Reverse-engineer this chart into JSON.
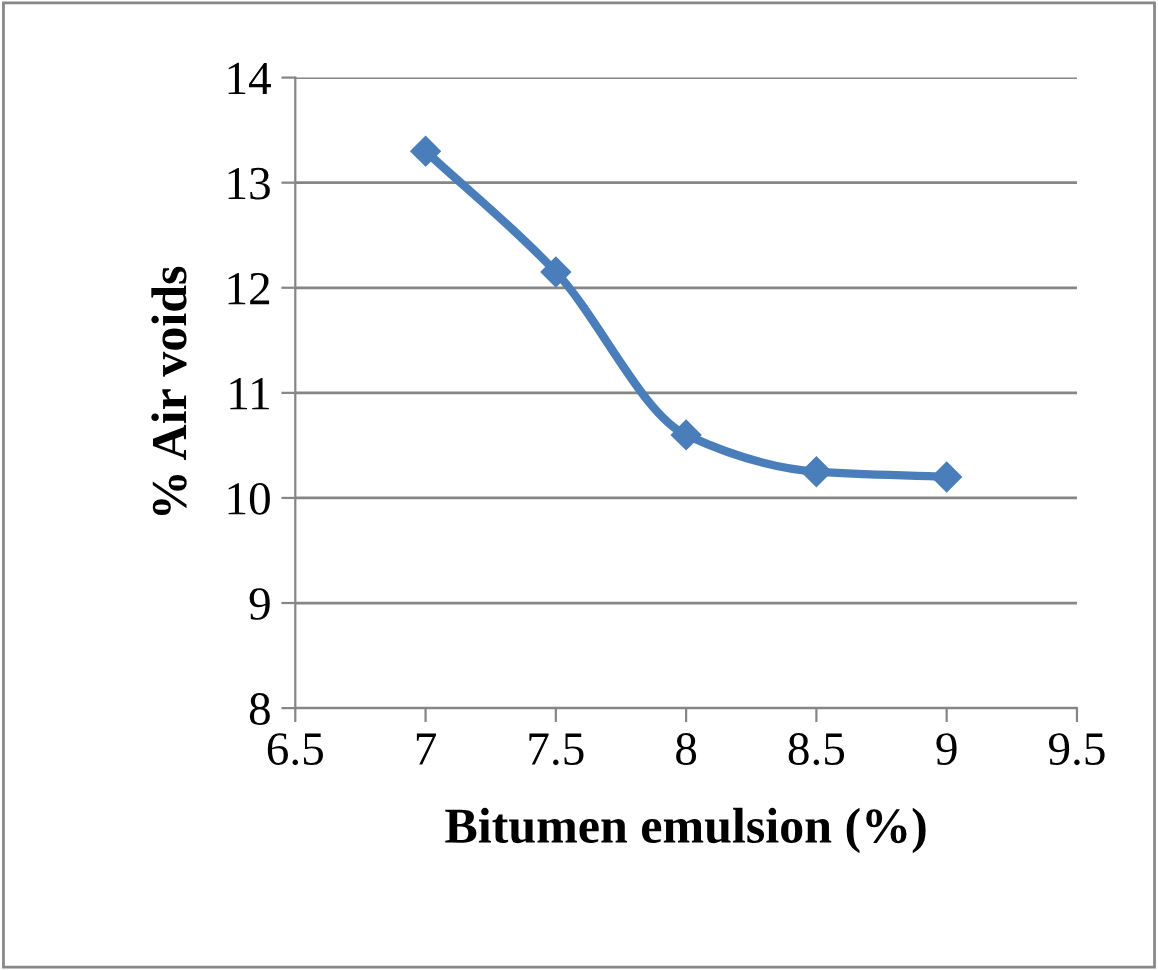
{
  "chart_data": {
    "type": "line",
    "xlabel": "Bitumen emulsion (%)",
    "ylabel": "% Air voids",
    "x": [
      7,
      7.5,
      8,
      8.5,
      9
    ],
    "series": [
      {
        "color": "#4a7ebb",
        "values": [
          13.3,
          12.15,
          10.6,
          10.25,
          10.2
        ]
      }
    ],
    "xlim": [
      6.5,
      9.5
    ],
    "xticks": [
      6.5,
      7,
      7.5,
      8,
      8.5,
      9,
      9.5
    ],
    "ylim": [
      8,
      14
    ],
    "yticks": [
      8,
      9,
      10,
      11,
      12,
      13,
      14
    ],
    "grid": "y",
    "marker": "diamond",
    "line_style": "solid",
    "legend": false
  }
}
